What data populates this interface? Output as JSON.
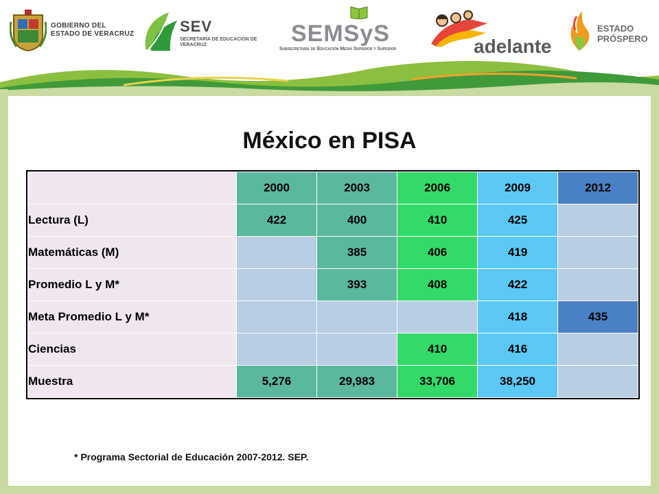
{
  "header": {
    "gov_logo_text": [
      "GOBIERNO DEL",
      "ESTADO DE VERACRUZ"
    ],
    "sev_logo": {
      "big": "SEV",
      "small": "SECRETARÍA DE EDUCACIÓN DE VERACRUZ"
    },
    "semsys_logo": {
      "big": "SEMSyS",
      "small": "Subsecretaría de Educación Media Superior y Superior"
    },
    "adelante_logo": {
      "word": "adelante"
    },
    "prospero_logo": {
      "lines": [
        "ESTADO",
        "PRÓSPERO"
      ]
    }
  },
  "title": "México en PISA",
  "table": {
    "years": [
      "2000",
      "2003",
      "2006",
      "2009",
      "2012"
    ],
    "rows": [
      {
        "label": "Lectura (L)",
        "values": [
          "422",
          "400",
          "410",
          "425",
          ""
        ]
      },
      {
        "label": "Matemáticas (M)",
        "values": [
          "",
          "385",
          "406",
          "419",
          ""
        ]
      },
      {
        "label": "Promedio L y M*",
        "values": [
          "",
          "393",
          "408",
          "422",
          ""
        ]
      },
      {
        "label": "Meta Promedio L y M*",
        "values": [
          "",
          "",
          "",
          "418",
          "435"
        ]
      },
      {
        "label": "Ciencias",
        "values": [
          "",
          "",
          "410",
          "416",
          ""
        ]
      },
      {
        "label": "Muestra",
        "values": [
          "5,276",
          "29,983",
          "33,706",
          "38,250",
          ""
        ]
      }
    ]
  },
  "footnote": "* Programa Sectorial de Educación 2007-2012. SEP.",
  "colors": {
    "col_2000": "#5bb79d",
    "col_2003": "#5bb79d",
    "col_2006": "#33d969",
    "col_2009": "#5bc8f5",
    "col_2012": "#4a80c4",
    "empty_cell": "#b9cde3",
    "label_cell": "#f1e6ef",
    "frame": "#c9dba0"
  }
}
